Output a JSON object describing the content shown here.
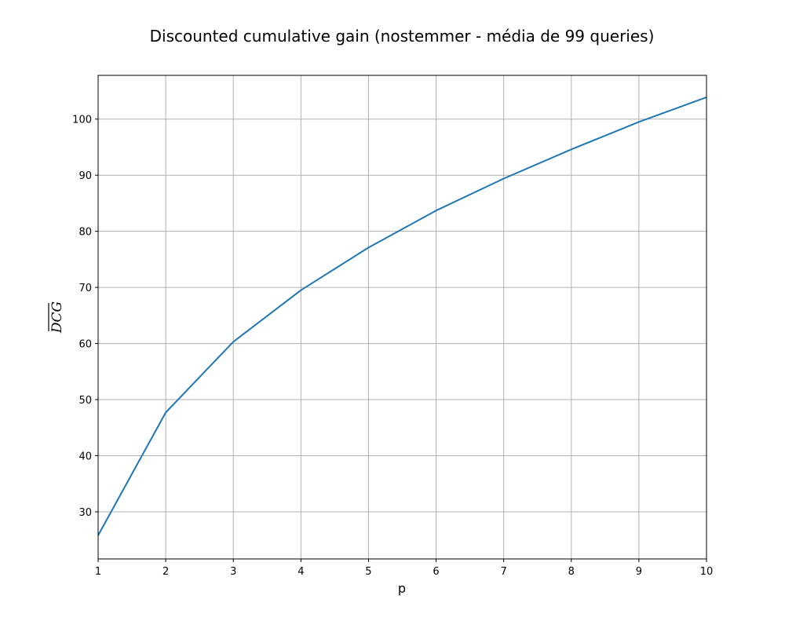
{
  "chart_data": {
    "type": "line",
    "title": "Discounted cumulative gain (nostemmer - média de 99 queries)",
    "xlabel": "p",
    "ylabel": "DCG",
    "ylabel_overline": true,
    "x": [
      1,
      2,
      3,
      4,
      5,
      6,
      7,
      8,
      9,
      10
    ],
    "series": [
      {
        "values": [
          25.8,
          47.7,
          60.3,
          69.5,
          77.1,
          83.7,
          89.4,
          94.6,
          99.5,
          103.9
        ],
        "color": "#1f77b4"
      }
    ],
    "xlim": [
      1,
      10
    ],
    "ylim": [
      21.6,
      107.8
    ],
    "xticks": [
      1,
      2,
      3,
      4,
      5,
      6,
      7,
      8,
      9,
      10
    ],
    "yticks": [
      30,
      40,
      50,
      60,
      70,
      80,
      90,
      100
    ],
    "grid": true,
    "colors": {
      "line": "#1f77b4",
      "grid": "#b0b0b0",
      "axes": "#000000"
    }
  }
}
